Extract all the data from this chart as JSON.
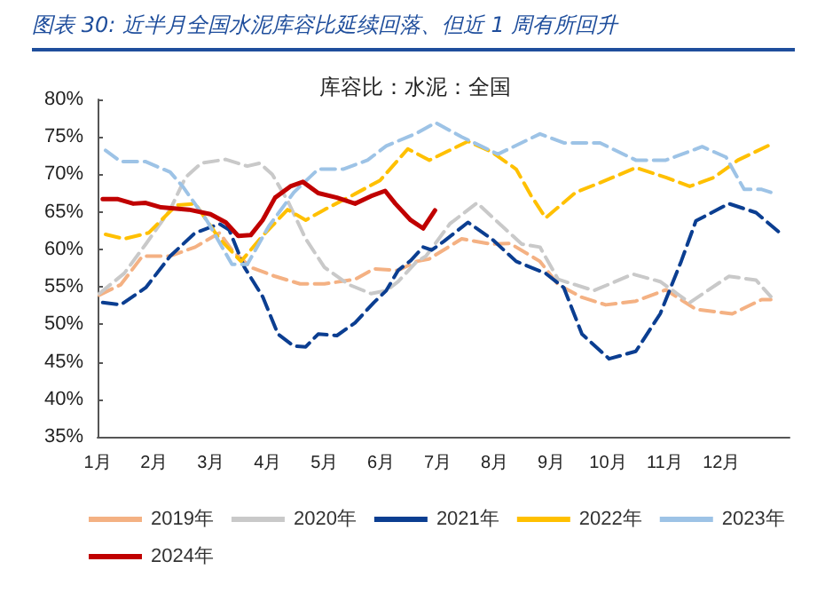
{
  "chart_data": {
    "type": "line",
    "title": "图表 30: 近半月全国水泥库容比延续回落、但近 1 周有所回升",
    "subtitle": "库容比：水泥：全国",
    "xlim": [
      1,
      13.2
    ],
    "xticks": [
      {
        "value": 1,
        "label": "1月"
      },
      {
        "value": 2,
        "label": "2月"
      },
      {
        "value": 3,
        "label": "3月"
      },
      {
        "value": 4,
        "label": "4月"
      },
      {
        "value": 5,
        "label": "5月"
      },
      {
        "value": 6,
        "label": "6月"
      },
      {
        "value": 7,
        "label": "7月"
      },
      {
        "value": 8,
        "label": "8月"
      },
      {
        "value": 9,
        "label": "9月"
      },
      {
        "value": 10,
        "label": "10月"
      },
      {
        "value": 11,
        "label": "11月"
      },
      {
        "value": 12,
        "label": "12月"
      }
    ],
    "ylim": [
      35,
      80
    ],
    "yticks": [
      {
        "value": 35,
        "label": "35%"
      },
      {
        "value": 40,
        "label": "40%"
      },
      {
        "value": 45,
        "label": "45%"
      },
      {
        "value": 50,
        "label": "50%"
      },
      {
        "value": 55,
        "label": "55%"
      },
      {
        "value": 60,
        "label": "60%"
      },
      {
        "value": 65,
        "label": "65%"
      },
      {
        "value": 70,
        "label": "70%"
      },
      {
        "value": 75,
        "label": "75%"
      },
      {
        "value": 80,
        "label": "80%"
      }
    ],
    "grid": false,
    "legend": "bottom",
    "marker": "none",
    "series": [
      {
        "name": "2019年",
        "color": "#f4b183",
        "line_style": "dashed",
        "x": [
          1.03,
          1.41,
          1.79,
          2.28,
          2.72,
          3.15,
          3.37,
          3.7,
          4.13,
          4.57,
          5,
          5.54,
          5.87,
          6.3,
          6.63,
          6.84,
          7.42,
          7.95,
          8.27,
          8.8,
          9.12,
          9.54,
          9.96,
          10.49,
          11.02,
          11.55,
          12.19,
          12.71,
          12.87
        ],
        "values": [
          53.9,
          55.3,
          59.1,
          59.1,
          60.3,
          62.2,
          59.9,
          57.6,
          56.4,
          55.4,
          55.4,
          56,
          57.4,
          57.2,
          58.4,
          58.7,
          61.4,
          60.7,
          60.8,
          58.4,
          55.3,
          53.6,
          52.6,
          53.1,
          54.6,
          52,
          51.4,
          53.3,
          53.3
        ]
      },
      {
        "name": "2020年",
        "color": "#c9c9c9",
        "line_style": "dashed",
        "x": [
          1.03,
          1.47,
          1.85,
          2.28,
          2.55,
          2.83,
          3.26,
          3.64,
          3.86,
          4.08,
          4.35,
          4.67,
          5,
          5.43,
          5.82,
          6.09,
          6.3,
          6.63,
          6.79,
          7.21,
          7.69,
          8.06,
          8.48,
          8.8,
          9.12,
          9.75,
          10.44,
          10.92,
          11.44,
          12.13,
          12.61,
          12.87
        ],
        "values": [
          54.1,
          56.8,
          60.7,
          65.3,
          69.6,
          71.5,
          72,
          71.1,
          71.5,
          70,
          66.5,
          61.4,
          57.6,
          55.3,
          54.1,
          54.5,
          55.7,
          58.4,
          59.1,
          63.4,
          66.2,
          63.6,
          60.7,
          60.3,
          56,
          54.5,
          56.7,
          55.7,
          52.9,
          56.4,
          55.9,
          53.7
        ]
      },
      {
        "name": "2021年",
        "color": "#0b3e91",
        "line_style": "dashed",
        "x": [
          1.09,
          1.41,
          1.85,
          2.28,
          2.72,
          3.15,
          3.32,
          3.59,
          3.91,
          4.18,
          4.46,
          4.67,
          4.89,
          5.22,
          5.54,
          5.87,
          6.09,
          6.3,
          6.52,
          6.74,
          6.89,
          7.11,
          7.53,
          7.95,
          8.38,
          8.9,
          9.22,
          9.54,
          10.02,
          10.49,
          10.92,
          11.29,
          11.55,
          12.13,
          12.61,
          13.03
        ],
        "values": [
          52.9,
          52.6,
          54.9,
          59.1,
          62.2,
          63.4,
          62.6,
          57.6,
          53.7,
          48.7,
          47.1,
          47,
          48.7,
          48.5,
          50.2,
          52.9,
          54.5,
          57.2,
          58.5,
          60.3,
          59.9,
          61.1,
          63.6,
          61.4,
          58.4,
          56.8,
          54.9,
          48.7,
          45.4,
          46.4,
          51.4,
          58.4,
          63.8,
          66.1,
          64.9,
          62.2
        ]
      },
      {
        "name": "2022年",
        "color": "#ffc000",
        "line_style": "dashed",
        "x": [
          1.14,
          1.47,
          1.9,
          2.39,
          2.72,
          3.15,
          3.53,
          3.91,
          4.35,
          4.67,
          5,
          5.54,
          5.98,
          6.47,
          6.85,
          7.53,
          7.95,
          8.38,
          8.64,
          8.9,
          9.43,
          9.96,
          10.49,
          11.02,
          11.44,
          11.87,
          12.29,
          12.87
        ],
        "values": [
          62,
          61.4,
          62.2,
          65.9,
          66.1,
          61.4,
          58.4,
          61.8,
          65.3,
          63.9,
          65.3,
          67.4,
          69.2,
          73.4,
          71.9,
          74.4,
          73,
          70.7,
          67.2,
          64.2,
          67.6,
          69.2,
          70.9,
          69.6,
          68.4,
          69.6,
          71.9,
          74
        ]
      },
      {
        "name": "2023年",
        "color": "#9dc3e6",
        "line_style": "dashed",
        "x": [
          1.14,
          1.41,
          1.85,
          2.28,
          2.5,
          2.93,
          3.37,
          3.64,
          4.02,
          4.46,
          4.89,
          5.33,
          5.76,
          6.09,
          6.63,
          6.96,
          7.42,
          8.06,
          8.8,
          9.22,
          9.86,
          10.49,
          11.02,
          11.66,
          12.08,
          12.4,
          12.71,
          12.87
        ],
        "values": [
          73.2,
          71.7,
          71.7,
          70.3,
          68.4,
          63.8,
          58,
          58,
          63.1,
          67.6,
          70.7,
          70.7,
          71.9,
          73.8,
          75.5,
          76.9,
          75,
          72.7,
          75.4,
          74.2,
          74.2,
          71.9,
          71.9,
          73.7,
          72.3,
          68,
          68,
          67.6
        ]
      },
      {
        "name": "2024年",
        "color": "#c00000",
        "line_style": "solid",
        "x": [
          1.09,
          1.36,
          1.63,
          1.85,
          2.12,
          2.61,
          2.99,
          3.26,
          3.48,
          3.7,
          3.91,
          4.13,
          4.4,
          4.62,
          4.89,
          5.22,
          5.54,
          5.82,
          6.07,
          6.25,
          6.52,
          6.74,
          6.95
        ],
        "values": [
          66.7,
          66.7,
          66.1,
          66.2,
          65.6,
          65.3,
          64.7,
          63.6,
          61.8,
          61.9,
          63.9,
          66.9,
          68.4,
          69,
          67.5,
          66.9,
          66.1,
          67.1,
          67.8,
          66.1,
          63.9,
          62.8,
          65.2
        ]
      }
    ]
  }
}
